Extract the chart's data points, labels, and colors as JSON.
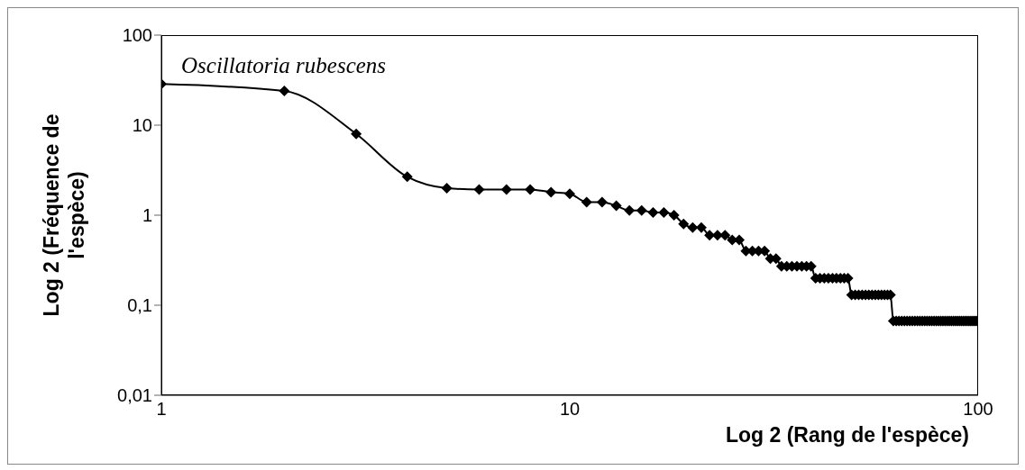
{
  "chart_data": {
    "type": "line",
    "xlabel": "Log 2 (Rang de l'espèce)",
    "ylabel": "Log 2 (Fréquence de l'espèce)",
    "annotations": [
      "Oscillatoria rubescens"
    ],
    "log": "xy",
    "xlim": [
      1,
      100
    ],
    "xticks": [
      1,
      10,
      100
    ],
    "ylim": [
      0.01,
      100
    ],
    "yticks": [
      {
        "value": 0.01,
        "label": "0,01"
      },
      {
        "value": 0.1,
        "label": "0,1"
      },
      1,
      10,
      100
    ],
    "marker": "diamond",
    "line_style": "solid",
    "grid": false,
    "legend": false,
    "x": [
      1,
      2,
      3,
      4,
      5,
      6,
      7,
      8,
      9,
      10,
      11,
      12,
      13,
      14,
      15,
      16,
      17,
      18,
      19,
      20,
      21,
      22,
      23,
      24,
      25,
      26,
      27,
      28,
      29,
      30,
      31,
      32,
      33,
      34,
      35,
      36,
      37,
      38,
      39,
      40,
      41,
      42,
      43,
      44,
      45,
      46,
      47,
      48,
      49,
      50,
      51,
      52,
      53,
      54,
      55,
      56,
      57,
      58,
      59,
      60,
      61,
      62,
      63,
      64,
      65,
      66,
      67,
      68,
      69,
      70,
      71,
      72,
      73,
      74,
      75,
      76,
      77,
      78,
      79,
      80,
      81,
      82,
      83,
      84,
      85,
      86,
      87,
      88,
      89,
      90,
      91,
      92,
      93,
      94,
      95,
      96,
      97,
      98,
      99,
      100
    ],
    "series": [
      {
        "color": "#000000",
        "values": [
          28.6,
          24,
          8,
          2.67,
          2,
          1.93,
          1.93,
          1.93,
          1.8,
          1.73,
          1.4,
          1.4,
          1.27,
          1.13,
          1.13,
          1.07,
          1.07,
          1,
          0.8,
          0.73,
          0.73,
          0.6,
          0.6,
          0.6,
          0.53,
          0.53,
          0.4,
          0.4,
          0.4,
          0.4,
          0.33,
          0.33,
          0.27,
          0.27,
          0.27,
          0.27,
          0.27,
          0.27,
          0.27,
          0.2,
          0.2,
          0.2,
          0.2,
          0.2,
          0.2,
          0.2,
          0.2,
          0.2,
          0.13,
          0.13,
          0.13,
          0.13,
          0.13,
          0.13,
          0.13,
          0.13,
          0.13,
          0.13,
          0.13,
          0.13,
          0.13,
          0.067,
          0.067,
          0.067,
          0.067,
          0.067,
          0.067,
          0.067,
          0.067,
          0.067,
          0.067,
          0.067,
          0.067,
          0.067,
          0.067,
          0.067,
          0.067,
          0.067,
          0.067,
          0.067,
          0.067,
          0.067,
          0.067,
          0.067,
          0.067,
          0.067,
          0.067,
          0.067,
          0.067,
          0.067,
          0.067,
          0.067,
          0.067,
          0.067,
          0.067,
          0.067,
          0.067,
          0.067,
          0.067,
          0.067
        ]
      }
    ]
  }
}
